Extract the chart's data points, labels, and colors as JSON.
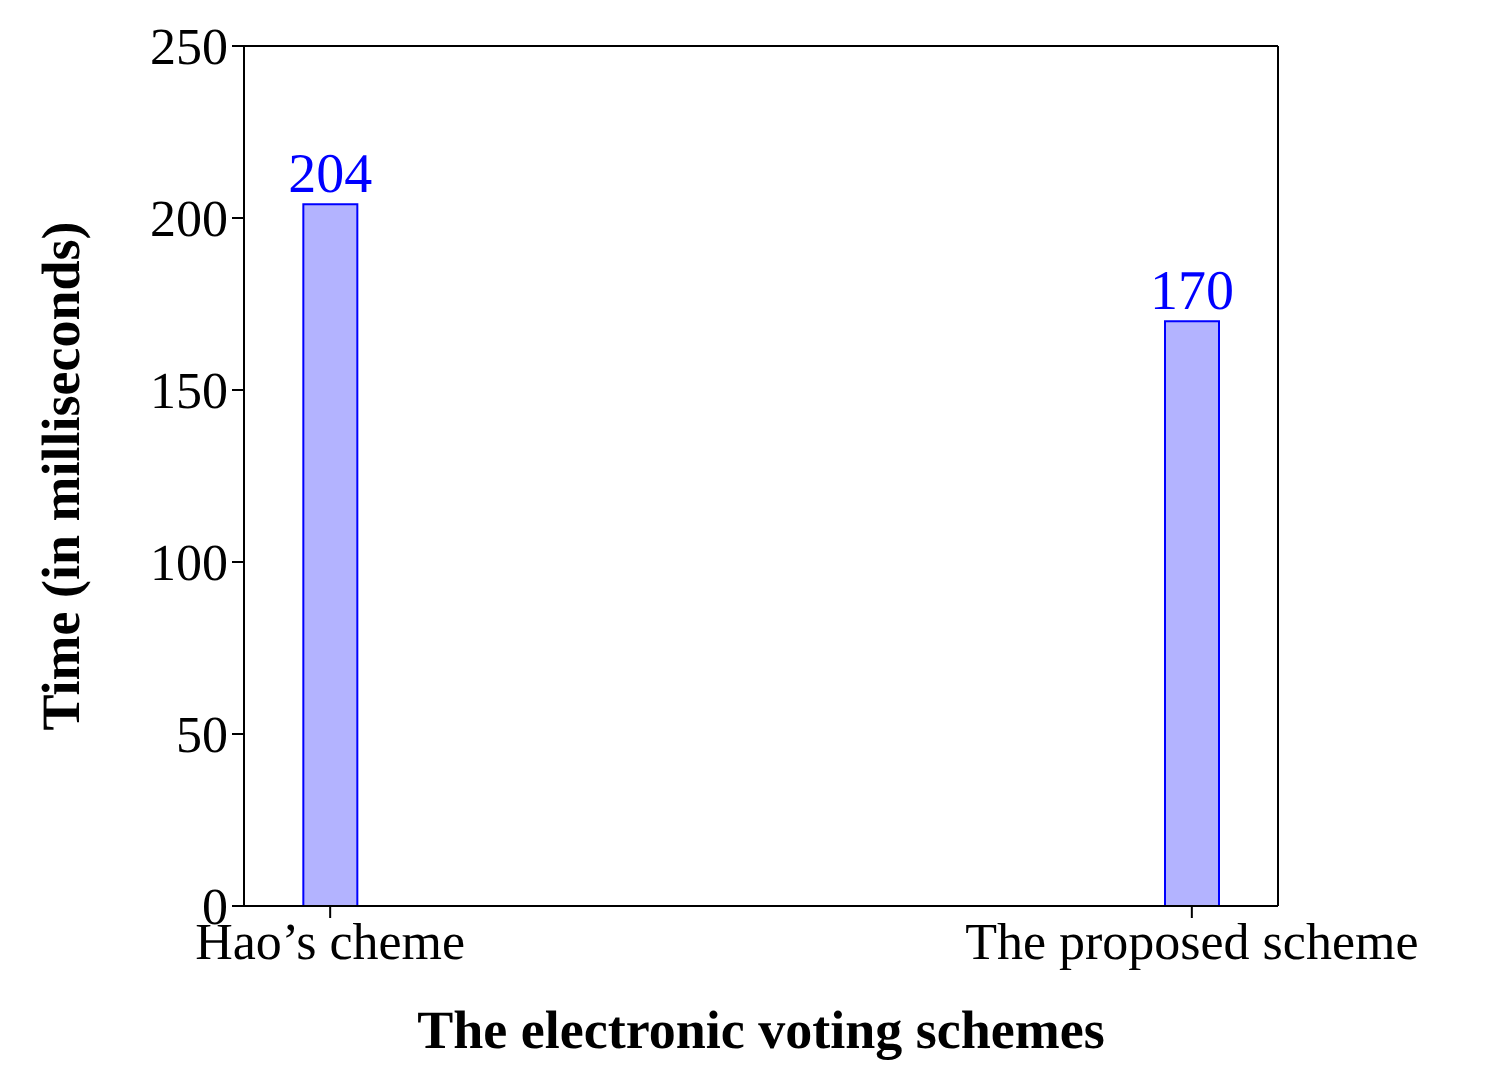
{
  "chart_data": {
    "type": "bar",
    "xlabel": "The electronic voting schemes",
    "ylabel": "Time (in milliseconds)",
    "categories": [
      "Hao’s cheme",
      "The proposed scheme"
    ],
    "series": [
      {
        "color": "#b3b3ff",
        "values": [
          204,
          170
        ]
      }
    ],
    "ylim": [
      0,
      250
    ],
    "yticks": [
      0,
      50,
      100,
      150,
      200,
      250
    ],
    "grid": false,
    "legend": false,
    "data_labels": true
  }
}
